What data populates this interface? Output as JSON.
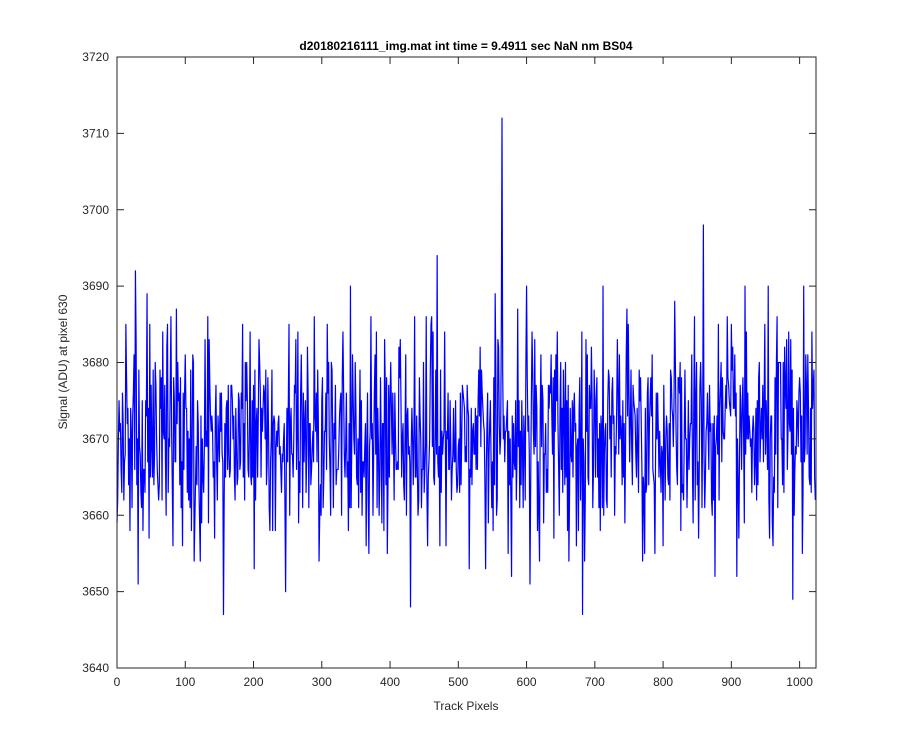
{
  "chart_data": {
    "type": "line",
    "title": "d20180216111_img.mat int time = 9.4911 sec  NaN nm BS04",
    "xlabel": "Track Pixels",
    "ylabel": "Signal (ADU) at pixel 630",
    "xlim": [
      0,
      1024
    ],
    "ylim": [
      3640,
      3720
    ],
    "xticks": [
      0,
      100,
      200,
      300,
      400,
      500,
      600,
      700,
      800,
      900,
      1000
    ],
    "yticks": [
      3640,
      3650,
      3660,
      3670,
      3680,
      3690,
      3700,
      3710,
      3720
    ],
    "grid": false,
    "series": [
      {
        "color": "#0000ff",
        "n_points": 1024,
        "mean": 3670,
        "approx_min": 3647,
        "approx_max": 3712,
        "peaks": [
          {
            "x": 27,
            "y": 3692
          },
          {
            "x": 156,
            "y": 3647
          },
          {
            "x": 247,
            "y": 3650
          },
          {
            "x": 430,
            "y": 3648
          },
          {
            "x": 469,
            "y": 3694
          },
          {
            "x": 564,
            "y": 3712
          },
          {
            "x": 578,
            "y": 3652
          },
          {
            "x": 682,
            "y": 3647
          },
          {
            "x": 859,
            "y": 3698
          },
          {
            "x": 990,
            "y": 3649
          }
        ]
      }
    ]
  }
}
